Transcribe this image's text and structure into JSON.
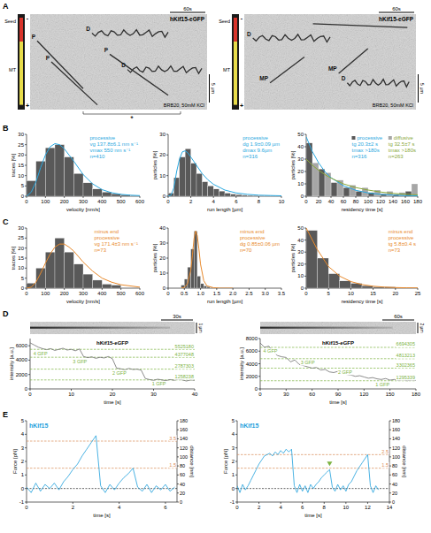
{
  "panel_labels": [
    "A",
    "B",
    "C",
    "D",
    "E"
  ],
  "kymographs": [
    {
      "title": "hKif15-eGFP",
      "time_bar": "60s",
      "length_bar": "5 µm",
      "buffer": "BRB20, 50mM KCl",
      "seed_label": "Seed",
      "mt_label": "MT",
      "minus_end": "-",
      "plus_end": "+",
      "track_labels": [
        "P",
        "D",
        "P",
        "D",
        "P"
      ],
      "asterisk": "*"
    },
    {
      "title": "hKif15-eGFP",
      "time_bar": "60s",
      "length_bar": "5 µm",
      "buffer": "BRB20, 50mM KCl",
      "seed_label": "Seed",
      "mt_label": "MT",
      "minus_end": "-",
      "plus_end": "+",
      "track_labels": [
        "D",
        "MP",
        "MP",
        "D"
      ]
    }
  ],
  "chart_data": [
    {
      "type": "histogram",
      "x_label": "velocity [nm/s]",
      "y_label": "traces [%]",
      "color": "#595959",
      "bins": [
        0,
        50,
        100,
        150,
        200,
        250,
        300,
        350,
        400,
        450,
        500,
        550,
        600
      ],
      "values": [
        7.5,
        17,
        23.5,
        25,
        19,
        11,
        6.5,
        3.5,
        2,
        1.2,
        0.7,
        0.3
      ],
      "fit": {
        "color": "#29a8e0",
        "x": [
          0,
          25,
          50,
          75,
          100,
          125,
          150,
          175,
          200,
          225,
          250,
          300,
          350,
          400,
          450,
          500,
          550,
          600
        ],
        "values": [
          0,
          2,
          7,
          14,
          20,
          24,
          25.5,
          25,
          23,
          20,
          17,
          10.5,
          6,
          3.2,
          1.7,
          0.9,
          0.5,
          0.3
        ]
      },
      "stats": [
        "processive",
        "vg 137.8±6.1 nm s⁻¹",
        "vmax 550 nm s⁻¹",
        "n=410"
      ],
      "xlim": [
        0,
        600
      ],
      "xticks": [
        0,
        100,
        200,
        300,
        400,
        500,
        600
      ],
      "ylim": [
        0,
        30
      ],
      "yticks": [
        0,
        5,
        10,
        15,
        20,
        25,
        30
      ]
    },
    {
      "type": "histogram",
      "x_label": "run length [µm]",
      "y_label": "particles [%]",
      "color": "#595959",
      "bins": [
        0,
        0.5,
        1,
        1.5,
        2,
        2.5,
        3,
        3.5,
        4,
        4.5,
        5,
        5.5,
        6,
        6.5,
        7,
        7.5,
        8,
        8.5,
        9,
        9.5,
        10
      ],
      "values": [
        1.5,
        9,
        19,
        23,
        16,
        11,
        7,
        5,
        3.5,
        2.5,
        1.5,
        1,
        0.8,
        0.5,
        0.4,
        0.3,
        0.2,
        0.2,
        0.1,
        0.1
      ],
      "fit": {
        "color": "#29a8e0",
        "x": [
          0,
          0.25,
          0.5,
          0.75,
          1,
          1.25,
          1.5,
          1.75,
          2,
          2.5,
          3,
          3.5,
          4,
          5,
          6,
          7,
          8,
          10
        ],
        "values": [
          0,
          0.5,
          4,
          12,
          18,
          21.5,
          22,
          21,
          19,
          15,
          11,
          8,
          5.8,
          3,
          1.6,
          0.9,
          0.5,
          0.2
        ]
      },
      "stats": [
        "processive",
        "dg 1.9±0.09 µm",
        "dmax 9.6µm",
        "n=316"
      ],
      "xlim": [
        0,
        10
      ],
      "xticks": [
        0,
        2,
        4,
        6,
        8,
        10
      ],
      "ylim": [
        0,
        30
      ],
      "yticks": [
        0,
        10,
        20,
        30
      ]
    },
    {
      "type": "histogram",
      "x_label": "residency time [s]",
      "y_label": "particles [%]",
      "legend": "top-right",
      "bins": [
        0,
        20,
        40,
        60,
        80,
        100,
        120,
        140,
        160,
        180
      ],
      "series": [
        {
          "name": "processive",
          "color": "#595959",
          "values": [
            43,
            22,
            11,
            7,
            4,
            3,
            2,
            1.5,
            4
          ],
          "fit": {
            "color": "#29a8e0",
            "x": [
              0,
              10,
              20,
              30,
              40,
              60,
              80,
              100,
              120,
              140,
              160,
              180
            ],
            "values": [
              48,
              36,
              27,
              20,
              15,
              8.5,
              4.8,
              2.7,
              1.5,
              0.9,
              0.5,
              0.3
            ]
          },
          "stats": [
            "tg 20.3±2 s",
            "tmax >180s",
            "n=316"
          ]
        },
        {
          "name": "diffusive",
          "color": "#a6a6a6",
          "values": [
            27,
            19,
            13,
            9,
            7,
            5,
            4,
            3,
            10
          ],
          "fit": {
            "color": "#8aa83a",
            "x": [
              0,
              10,
              20,
              30,
              40,
              60,
              80,
              100,
              120,
              140,
              160,
              180
            ],
            "values": [
              30,
              25,
              21,
              17.5,
              14.7,
              10,
              7,
              5,
              3.4,
              2.3,
              1.6,
              1.1
            ]
          },
          "stats": [
            "tg 32.5±7 s",
            "tmax >180s",
            "n=263"
          ]
        }
      ],
      "xlim": [
        0,
        180
      ],
      "xticks": [
        0,
        20,
        40,
        60,
        80,
        100,
        120,
        140,
        160,
        180
      ],
      "ylim": [
        0,
        50
      ],
      "yticks": [
        0,
        10,
        20,
        30,
        40,
        50
      ]
    },
    {
      "type": "histogram",
      "x_label": "velocity [nm/s]",
      "y_label": "traces [%]",
      "color": "#595959",
      "bins": [
        0,
        50,
        100,
        150,
        200,
        250,
        300,
        350,
        400,
        450,
        500
      ],
      "values": [
        2.5,
        10,
        18,
        25,
        18,
        12,
        7,
        4,
        2,
        1.5
      ],
      "fit": {
        "color": "#e8892b",
        "x": [
          0,
          25,
          50,
          75,
          100,
          125,
          150,
          175,
          200,
          225,
          250,
          300,
          350,
          400,
          450,
          500,
          600
        ],
        "values": [
          0,
          0.5,
          3,
          7.5,
          12.5,
          17,
          20.5,
          22,
          22,
          20.5,
          18.5,
          13,
          8.5,
          5,
          3,
          1.7,
          0.5
        ]
      },
      "stats": [
        "minus end processive",
        "vg 171.4±3 nm s⁻¹",
        "n=73"
      ],
      "xlim": [
        0,
        600
      ],
      "xticks": [
        0,
        100,
        200,
        300,
        400,
        500,
        600
      ],
      "ylim": [
        0,
        30
      ],
      "yticks": [
        0,
        5,
        10,
        15,
        20,
        25,
        30
      ]
    },
    {
      "type": "histogram",
      "x_label": "run length [µm]",
      "y_label": "particles [%]",
      "color": "#595959",
      "bins": [
        0.4,
        0.5,
        0.6,
        0.7,
        0.8,
        0.9,
        1.0,
        1.1,
        1.2,
        1.3,
        1.4,
        1.5
      ],
      "values": [
        2,
        6,
        14,
        26,
        38,
        8,
        3,
        1.5,
        1,
        0.5,
        0.5
      ],
      "fit": {
        "color": "#e8892b",
        "x": [
          0.4,
          0.5,
          0.6,
          0.7,
          0.75,
          0.8,
          0.85,
          0.9,
          0.95,
          1.0,
          1.1,
          1.2,
          1.4,
          1.6,
          2.0
        ],
        "values": [
          0,
          0.5,
          3,
          12,
          22,
          33,
          38,
          35,
          26,
          16,
          5,
          1.5,
          0.3,
          0,
          0
        ]
      },
      "stats": [
        "minus end processive",
        "dg 0.85±0.06 µm",
        "n=70"
      ],
      "xlim": [
        0,
        3.5
      ],
      "xticks": [
        0,
        0.5,
        {
          "value": 1,
          "label": "1.0"
        },
        1.5,
        {
          "value": 2,
          "label": "2.0"
        },
        2.5,
        {
          "value": 3,
          "label": "3.0"
        },
        3.5
      ],
      "ylim": [
        0,
        40
      ],
      "yticks": [
        0,
        10,
        20,
        30,
        40
      ]
    },
    {
      "type": "histogram",
      "x_label": "residency time [s]",
      "y_label": "particles [%]",
      "color": "#595959",
      "bins": [
        0,
        2.5,
        5,
        7.5,
        10,
        12.5,
        15,
        17.5,
        20
      ],
      "values": [
        48,
        25,
        12,
        6,
        4,
        2,
        1,
        1
      ],
      "fit": {
        "color": "#e8892b",
        "x": [
          0,
          2.5,
          5,
          7.5,
          10,
          12.5,
          15,
          17.5,
          20,
          22.5,
          25
        ],
        "values": [
          50,
          32,
          18,
          10,
          5.5,
          3,
          1.6,
          0.9,
          0.5,
          0.3,
          0.2
        ]
      },
      "stats": [
        "minus end processive",
        "tg 5.8±0.4 s",
        "n=73"
      ],
      "xlim": [
        0,
        25
      ],
      "xticks": [
        0,
        5,
        10,
        15,
        20,
        25
      ],
      "ylim": [
        0,
        50
      ],
      "yticks": [
        0,
        10,
        20,
        30,
        40,
        50
      ]
    },
    {
      "type": "line",
      "title": "hKif15-eGFP",
      "x_label": "time [s]",
      "y_label": "intensity [a.u.]",
      "color": "#6e6e6e",
      "kymograph": {
        "time_bar": "30s",
        "length_bar": "1 µm"
      },
      "x": [
        0,
        1,
        2,
        3,
        4,
        5,
        6,
        7,
        8,
        9,
        10,
        11,
        12,
        13,
        14,
        15,
        16,
        17,
        18,
        19,
        20,
        21,
        22,
        23,
        24,
        25,
        26,
        27,
        28,
        29,
        30,
        31,
        32,
        33,
        34,
        35,
        36,
        37,
        38,
        39,
        40
      ],
      "values": [
        6400,
        6100,
        5800,
        5600,
        5450,
        5600,
        5350,
        5500,
        5650,
        5400,
        5500,
        5300,
        5550,
        4500,
        4350,
        4450,
        4250,
        4400,
        4300,
        4500,
        4200,
        2900,
        2800,
        2650,
        2850,
        2700,
        2750,
        2600,
        1450,
        1300,
        1200,
        1350,
        1250,
        1150,
        1300,
        1200,
        1350,
        1250,
        1100,
        1250,
        1200
      ],
      "levels": {
        "color": "#7cb342",
        "values": [
          5500,
          4400,
          2750,
          1250
        ],
        "labels": [
          "5525180",
          "4377048",
          "2787303",
          "1258238"
        ]
      },
      "step_labels": [
        "4 GFP",
        "3 GFP",
        "2 GFP",
        "1 GFP"
      ],
      "xlim": [
        0,
        40
      ],
      "xticks": [
        0,
        10,
        20,
        30,
        40
      ],
      "ylim": [
        0,
        7000
      ],
      "yticks": [
        0,
        2000,
        4000,
        6000
      ]
    },
    {
      "type": "line",
      "title": "hKif15-eGFP",
      "x_label": "time [s]",
      "y_label": "intensity [a.u.]",
      "color": "#6e6e6e",
      "kymograph": {
        "time_bar": "60s",
        "length_bar": "2 µm"
      },
      "x": [
        0,
        5,
        10,
        15,
        20,
        25,
        30,
        35,
        40,
        45,
        50,
        55,
        60,
        65,
        70,
        75,
        80,
        85,
        90,
        95,
        100,
        105,
        110,
        115,
        120,
        125,
        130,
        135,
        140,
        145,
        150,
        155,
        160,
        165,
        170,
        175,
        180
      ],
      "values": [
        7300,
        6600,
        6800,
        5900,
        5300,
        5100,
        5000,
        4300,
        4600,
        3900,
        3700,
        3500,
        3300,
        3400,
        3000,
        3100,
        2700,
        2600,
        2800,
        2400,
        2300,
        2200,
        2000,
        2100,
        1900,
        1700,
        1800,
        1600,
        1500,
        1650,
        1400,
        1500,
        1350,
        1450,
        1300,
        1400,
        1350
      ],
      "levels": {
        "color": "#7cb342",
        "values": [
          6600,
          4800,
          3300,
          1300
        ],
        "labels": [
          "6694305",
          "4813213",
          "3302365",
          "1295339"
        ]
      },
      "step_labels": [
        "4 GFP",
        "3 GFP",
        "2 GFP",
        "1 GFP"
      ],
      "xlim": [
        0,
        180
      ],
      "xticks": [
        0,
        30,
        60,
        90,
        120,
        150,
        180
      ],
      "ylim": [
        0,
        8000
      ],
      "yticks": [
        0,
        2000,
        4000,
        6000,
        8000
      ]
    },
    {
      "type": "line",
      "title": "hKif15",
      "x_label": "time [s]",
      "y_label": "Force [pN]",
      "y2_label": "distance [nm]",
      "color": "#1ea0dc",
      "x": [
        0,
        0.2,
        0.4,
        0.6,
        0.8,
        1,
        1.2,
        1.4,
        1.6,
        1.8,
        2,
        2.2,
        2.4,
        2.6,
        2.8,
        3,
        3.2,
        3.4,
        3.6,
        3.8,
        4,
        4.2,
        4.4,
        4.6,
        4.8,
        5,
        5.2,
        5.4,
        5.6,
        5.8,
        6,
        6.2,
        6.4
      ],
      "values": [
        0.1,
        -0.3,
        0.4,
        -0.2,
        0.3,
        0.0,
        0.4,
        -0.1,
        0.5,
        0.9,
        1.4,
        1.8,
        2.4,
        2.9,
        3.4,
        3.9,
        0.2,
        -0.3,
        0.3,
        -0.1,
        0.4,
        0.8,
        1.1,
        1.5,
        0.1,
        -0.2,
        0.3,
        -0.3,
        0.2,
        -0.1,
        0.3,
        -0.2,
        0.1
      ],
      "baseline": 0,
      "levels": {
        "color": "#d98a55",
        "values": [
          3.5,
          1.5
        ]
      },
      "xlim": [
        0,
        6.5
      ],
      "xticks": [
        0,
        2,
        4,
        6
      ],
      "ylim": [
        -1,
        5
      ],
      "yticks": [
        -1,
        0,
        1,
        2,
        3,
        4,
        5
      ],
      "y2lim": [
        0,
        180
      ],
      "y2ticks": [
        0,
        20,
        40,
        60,
        80,
        100,
        120,
        140,
        160,
        180
      ]
    },
    {
      "type": "line",
      "title": "hKif15",
      "x_label": "time [s]",
      "y_label": "Force [pN]",
      "y2_label": "distance [nm]",
      "color": "#1ea0dc",
      "x": [
        0,
        0.25,
        0.5,
        0.75,
        1,
        1.25,
        1.5,
        1.75,
        2,
        2.25,
        2.5,
        2.75,
        3,
        3.25,
        3.5,
        3.75,
        4,
        4.25,
        4.5,
        4.75,
        5,
        5.25,
        5.5,
        5.75,
        6,
        6.25,
        6.5,
        6.75,
        7,
        7.25,
        7.5,
        7.75,
        8,
        8.25,
        8.5,
        8.75,
        9,
        9.25,
        9.5,
        9.75,
        10,
        10.25,
        10.5,
        10.75,
        11,
        11.25,
        11.5,
        11.75,
        12,
        12.25,
        12.5,
        12.75,
        13
      ],
      "values": [
        0.2,
        -0.3,
        0.3,
        -0.1,
        0.2,
        0.6,
        1.0,
        1.4,
        1.8,
        2.1,
        2.4,
        2.5,
        2.6,
        2.4,
        2.7,
        2.5,
        2.8,
        2.6,
        2.9,
        2.7,
        2.9,
        0.2,
        -0.3,
        0.3,
        -0.2,
        0.2,
        -0.3,
        0.3,
        0,
        0.3,
        0.5,
        0.8,
        1.0,
        1.2,
        1.4,
        0.1,
        -0.2,
        0.3,
        -0.1,
        0.2,
        -0.2,
        0.3,
        0.5,
        0.9,
        1.3,
        1.6,
        1.9,
        2.2,
        2.5,
        0.2,
        -0.3,
        0.2,
        -0.1
      ],
      "baseline": 0,
      "levels": {
        "color": "#d98a55",
        "values": [
          2.5,
          1.5
        ]
      },
      "arrowhead": {
        "x": 8.5,
        "color": "#7cb342"
      },
      "xlim": [
        0,
        14
      ],
      "xticks": [
        0,
        2,
        4,
        6,
        8,
        10,
        12,
        14
      ],
      "ylim": [
        -1,
        5
      ],
      "yticks": [
        -1,
        0,
        1,
        2,
        3,
        4,
        5
      ],
      "y2lim": [
        0,
        180
      ],
      "y2ticks": [
        0,
        20,
        40,
        60,
        80,
        100,
        120,
        140,
        160,
        180
      ]
    }
  ]
}
